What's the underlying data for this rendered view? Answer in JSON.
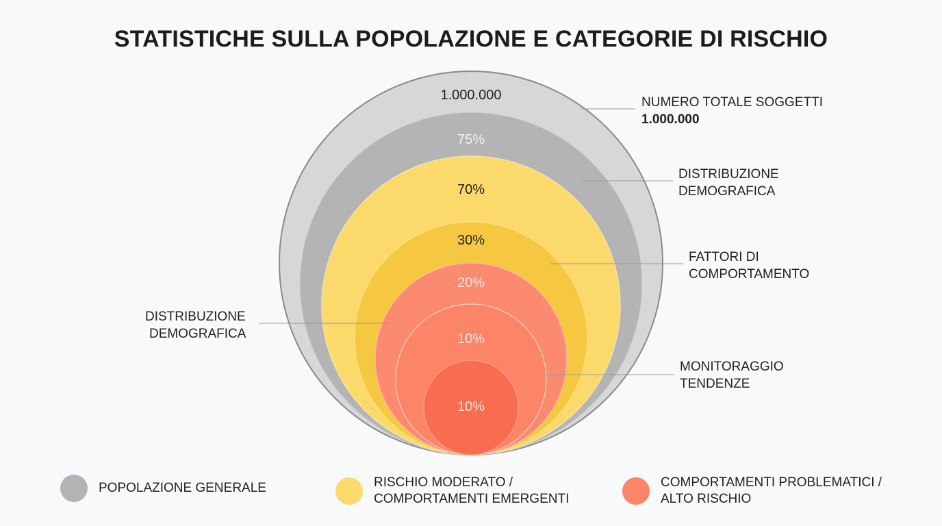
{
  "title": "STATISTICHE SULLA POPOLAZIONE E CATEGORIE DI RISCHIO",
  "rings": [
    {
      "label": "1.000.000",
      "fill": "#d7d7d7",
      "text_color": "#222222"
    },
    {
      "label": "75%",
      "fill": "#b4b4b4",
      "text_color": "#f2f2f2"
    },
    {
      "label": "70%",
      "fill": "#fbd96b",
      "text_color": "#222222"
    },
    {
      "label": "30%",
      "fill": "#f6c842",
      "text_color": "#222222"
    },
    {
      "label": "20%",
      "fill": "#fb8a6e",
      "text_color": "#fde8e2"
    },
    {
      "label": "10%",
      "fill": "#fb8566",
      "text_color": "#fde8e2"
    },
    {
      "label": "10%",
      "fill": "#f86c50",
      "text_color": "#fde8e2"
    }
  ],
  "callouts": {
    "total": {
      "label": "NUMERO TOTALE SOGGETTI",
      "value": "1.000.000"
    },
    "demo_right": {
      "line1": "DISTRIBUZIONE",
      "line2": "DEMOGRAFICA"
    },
    "behaviour": {
      "line1": "FATTORI DI",
      "line2": "COMPORTAMENTO"
    },
    "trends": {
      "line1": "MONITORAGGIO",
      "line2": "TENDENZE"
    },
    "demo_left": {
      "line1": "DISTRIBUZIONE",
      "line2": "DEMOGRAFICA"
    }
  },
  "legend": [
    {
      "label": "POPOLAZIONE GENERALE",
      "color": "#b3b3b3"
    },
    {
      "label": "RISCHIO MODERATO / COMPORTAMENTI EMERGENTI",
      "color": "#fbd96b"
    },
    {
      "label": "COMPORTAMENTI PROBLEMATICI / ALTO RISCHIO",
      "color": "#fb8566"
    }
  ]
}
